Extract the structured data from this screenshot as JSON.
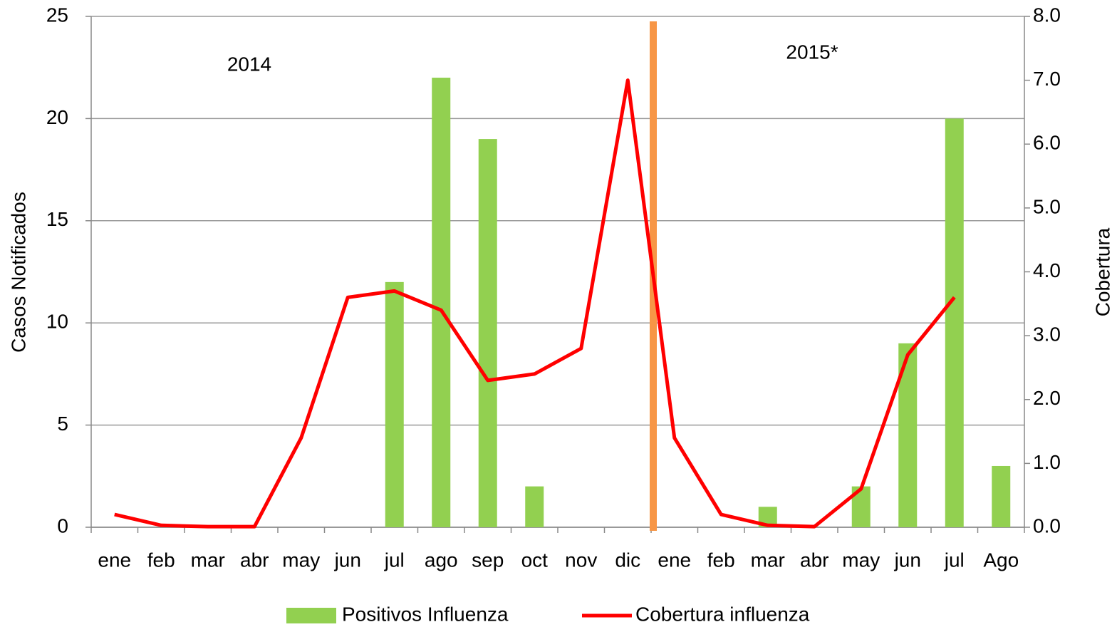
{
  "chart_data": {
    "type": "bar-line",
    "categories": [
      "ene",
      "feb",
      "mar",
      "abr",
      "may",
      "jun",
      "jul",
      "ago",
      "sep",
      "oct",
      "nov",
      "dic",
      "ene",
      "feb",
      "mar",
      "abr",
      "may",
      "jun",
      "jul",
      "Ago"
    ],
    "series": [
      {
        "name": "Positivos Influenza",
        "type": "bar",
        "color": "#92d050",
        "axis": "y",
        "values": [
          0,
          0,
          0,
          0,
          0,
          0,
          12,
          22,
          19,
          2,
          0,
          0,
          0,
          0,
          1,
          0,
          2,
          9,
          20,
          3
        ]
      },
      {
        "name": "Cobertura influenza",
        "type": "line",
        "color": "#ff0000",
        "axis": "y2",
        "values": [
          0.2,
          0.03,
          0.01,
          0.01,
          1.4,
          3.6,
          3.7,
          3.4,
          2.3,
          2.4,
          2.8,
          7.0,
          1.4,
          0.2,
          0.03,
          0.01,
          0.6,
          2.7,
          3.6,
          null
        ]
      }
    ],
    "ylabel": "Casos Notificados",
    "y2label": "Cobertura",
    "ylim": [
      0,
      25
    ],
    "yticks": [
      0,
      5,
      10,
      15,
      20,
      25
    ],
    "y2lim": [
      0,
      8
    ],
    "y2ticks": [
      {
        "value": 0,
        "label": "0.0"
      },
      {
        "value": 1,
        "label": "1.0"
      },
      {
        "value": 2,
        "label": "2.0"
      },
      {
        "value": 3,
        "label": "3.0"
      },
      {
        "value": 4,
        "label": "4.0"
      },
      {
        "value": 5,
        "label": "5.0"
      },
      {
        "value": 6,
        "label": "6.0"
      },
      {
        "value": 7,
        "label": "7.0"
      },
      {
        "value": 8,
        "label": "8.0"
      }
    ],
    "annotations": [
      "2014",
      "2015*"
    ],
    "grid": true,
    "legend": "bottom"
  }
}
